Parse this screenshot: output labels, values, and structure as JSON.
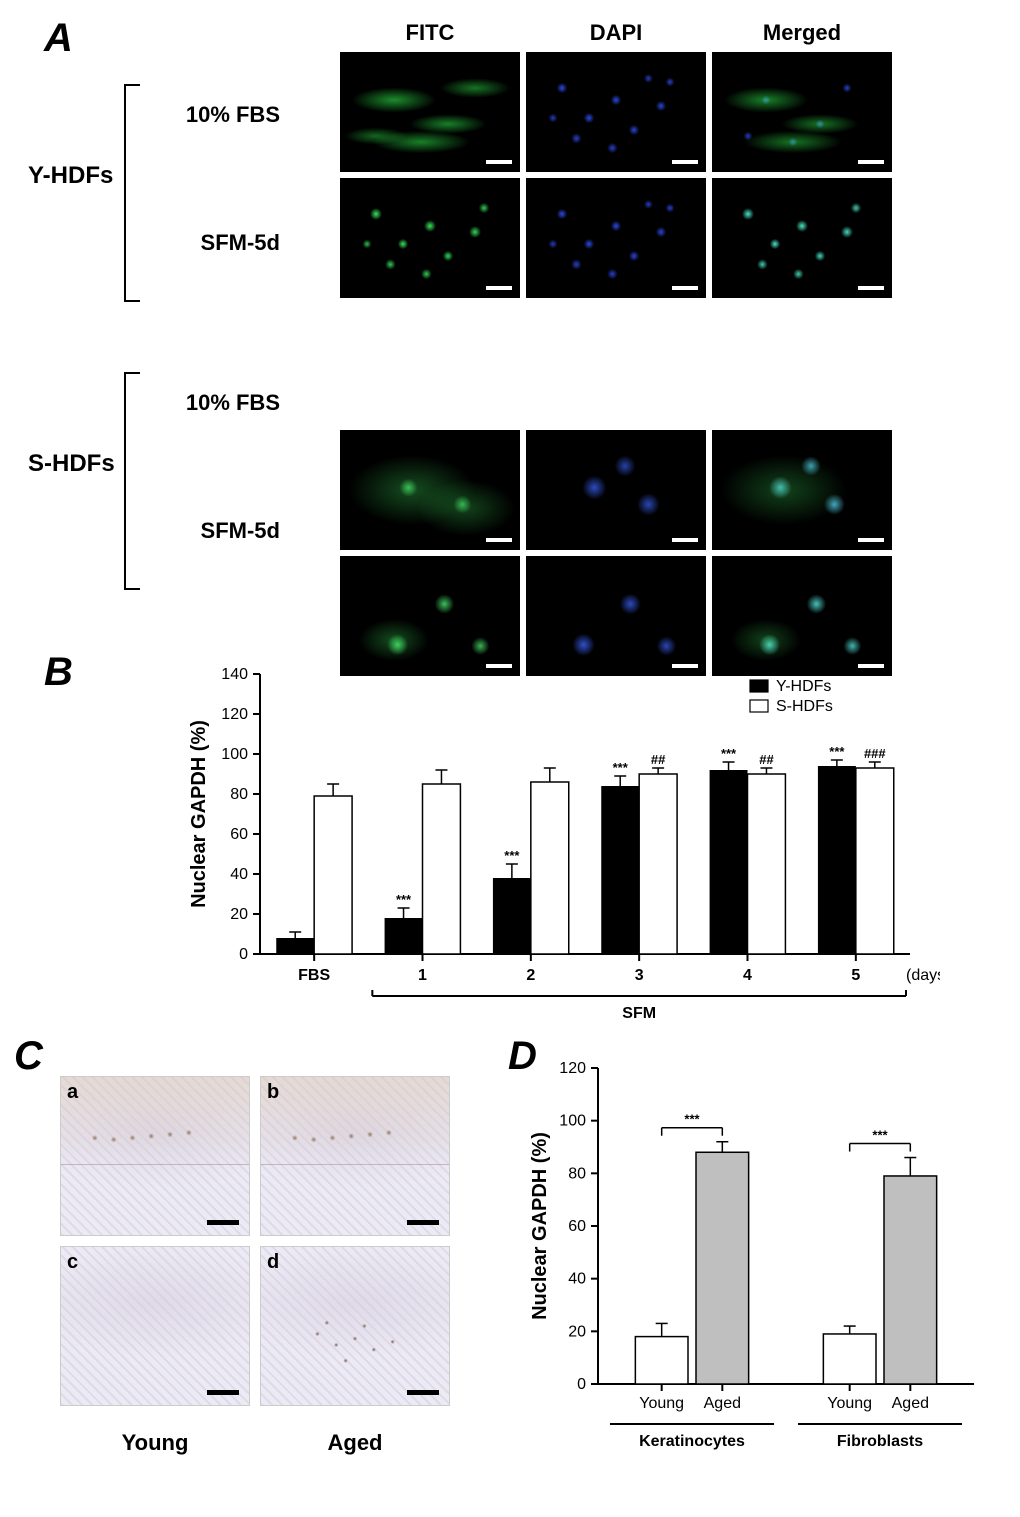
{
  "panelA": {
    "label": "A",
    "col_headers": [
      "FITC",
      "DAPI",
      "Merged"
    ],
    "groups": [
      {
        "name": "Y-HDFs",
        "conditions": [
          "10% FBS",
          "SFM-5d"
        ]
      },
      {
        "name": "S-HDFs",
        "conditions": [
          "10% FBS",
          "SFM-5d"
        ]
      }
    ],
    "label_fontsize": 24,
    "header_fontsize": 22,
    "background_color": "#000000",
    "scalebar_color": "#ffffff"
  },
  "panelB": {
    "label": "B",
    "chart": {
      "type": "bar-grouped",
      "ylabel": "Nuclear GAPDH (%)",
      "ylim": [
        0,
        140
      ],
      "ytick_step": 20,
      "yticks": [
        0,
        20,
        40,
        60,
        80,
        100,
        120,
        140
      ],
      "categories": [
        "FBS",
        "1",
        "2",
        "3",
        "4",
        "5"
      ],
      "x_group_label": "SFM",
      "x_group_range": [
        1,
        5
      ],
      "x_unit_label": "(days)",
      "series": [
        {
          "name": "Y-HDFs",
          "color": "#000000",
          "values": [
            8,
            18,
            38,
            84,
            92,
            94
          ],
          "errors": [
            3,
            5,
            7,
            5,
            4,
            3
          ],
          "sig": [
            "",
            "***",
            "***",
            "***",
            "***",
            "***"
          ]
        },
        {
          "name": "S-HDFs",
          "color": "#ffffff",
          "values": [
            79,
            85,
            86,
            90,
            90,
            93
          ],
          "errors": [
            6,
            7,
            7,
            3,
            3,
            3
          ],
          "sig": [
            "",
            "",
            "",
            "##",
            "##",
            "###"
          ]
        }
      ],
      "bar_width": 0.35,
      "label_fontsize": 20,
      "tick_fontsize": 16,
      "legend_pos": "top-right",
      "axis_color": "#000000",
      "background_color": "#ffffff"
    }
  },
  "panelC": {
    "label": "C",
    "col_labels": [
      "Young",
      "Aged"
    ],
    "sub_labels": [
      "a",
      "b",
      "c",
      "d"
    ],
    "scalebar_color": "#000000",
    "label_fontsize": 22
  },
  "panelD": {
    "label": "D",
    "chart": {
      "type": "bar-grouped",
      "ylabel": "Nuclear GAPDH (%)",
      "ylim": [
        0,
        120
      ],
      "ytick_step": 20,
      "yticks": [
        0,
        20,
        40,
        60,
        80,
        100,
        120
      ],
      "groups": [
        "Keratinocytes",
        "Fibroblasts"
      ],
      "categories": [
        "Young",
        "Aged"
      ],
      "series": [
        {
          "group": "Keratinocytes",
          "name": "Young",
          "value": 18,
          "error": 5,
          "color": "#ffffff"
        },
        {
          "group": "Keratinocytes",
          "name": "Aged",
          "value": 88,
          "error": 4,
          "color": "#bfbfbf"
        },
        {
          "group": "Fibroblasts",
          "name": "Young",
          "value": 19,
          "error": 3,
          "color": "#ffffff"
        },
        {
          "group": "Fibroblasts",
          "name": "Aged",
          "value": 79,
          "error": 7,
          "color": "#bfbfbf"
        }
      ],
      "sig_pairs": [
        {
          "group": "Keratinocytes",
          "label": "***"
        },
        {
          "group": "Fibroblasts",
          "label": "***"
        }
      ],
      "bar_width": 0.6,
      "label_fontsize": 20,
      "tick_fontsize": 16,
      "axis_color": "#000000",
      "background_color": "#ffffff"
    }
  }
}
